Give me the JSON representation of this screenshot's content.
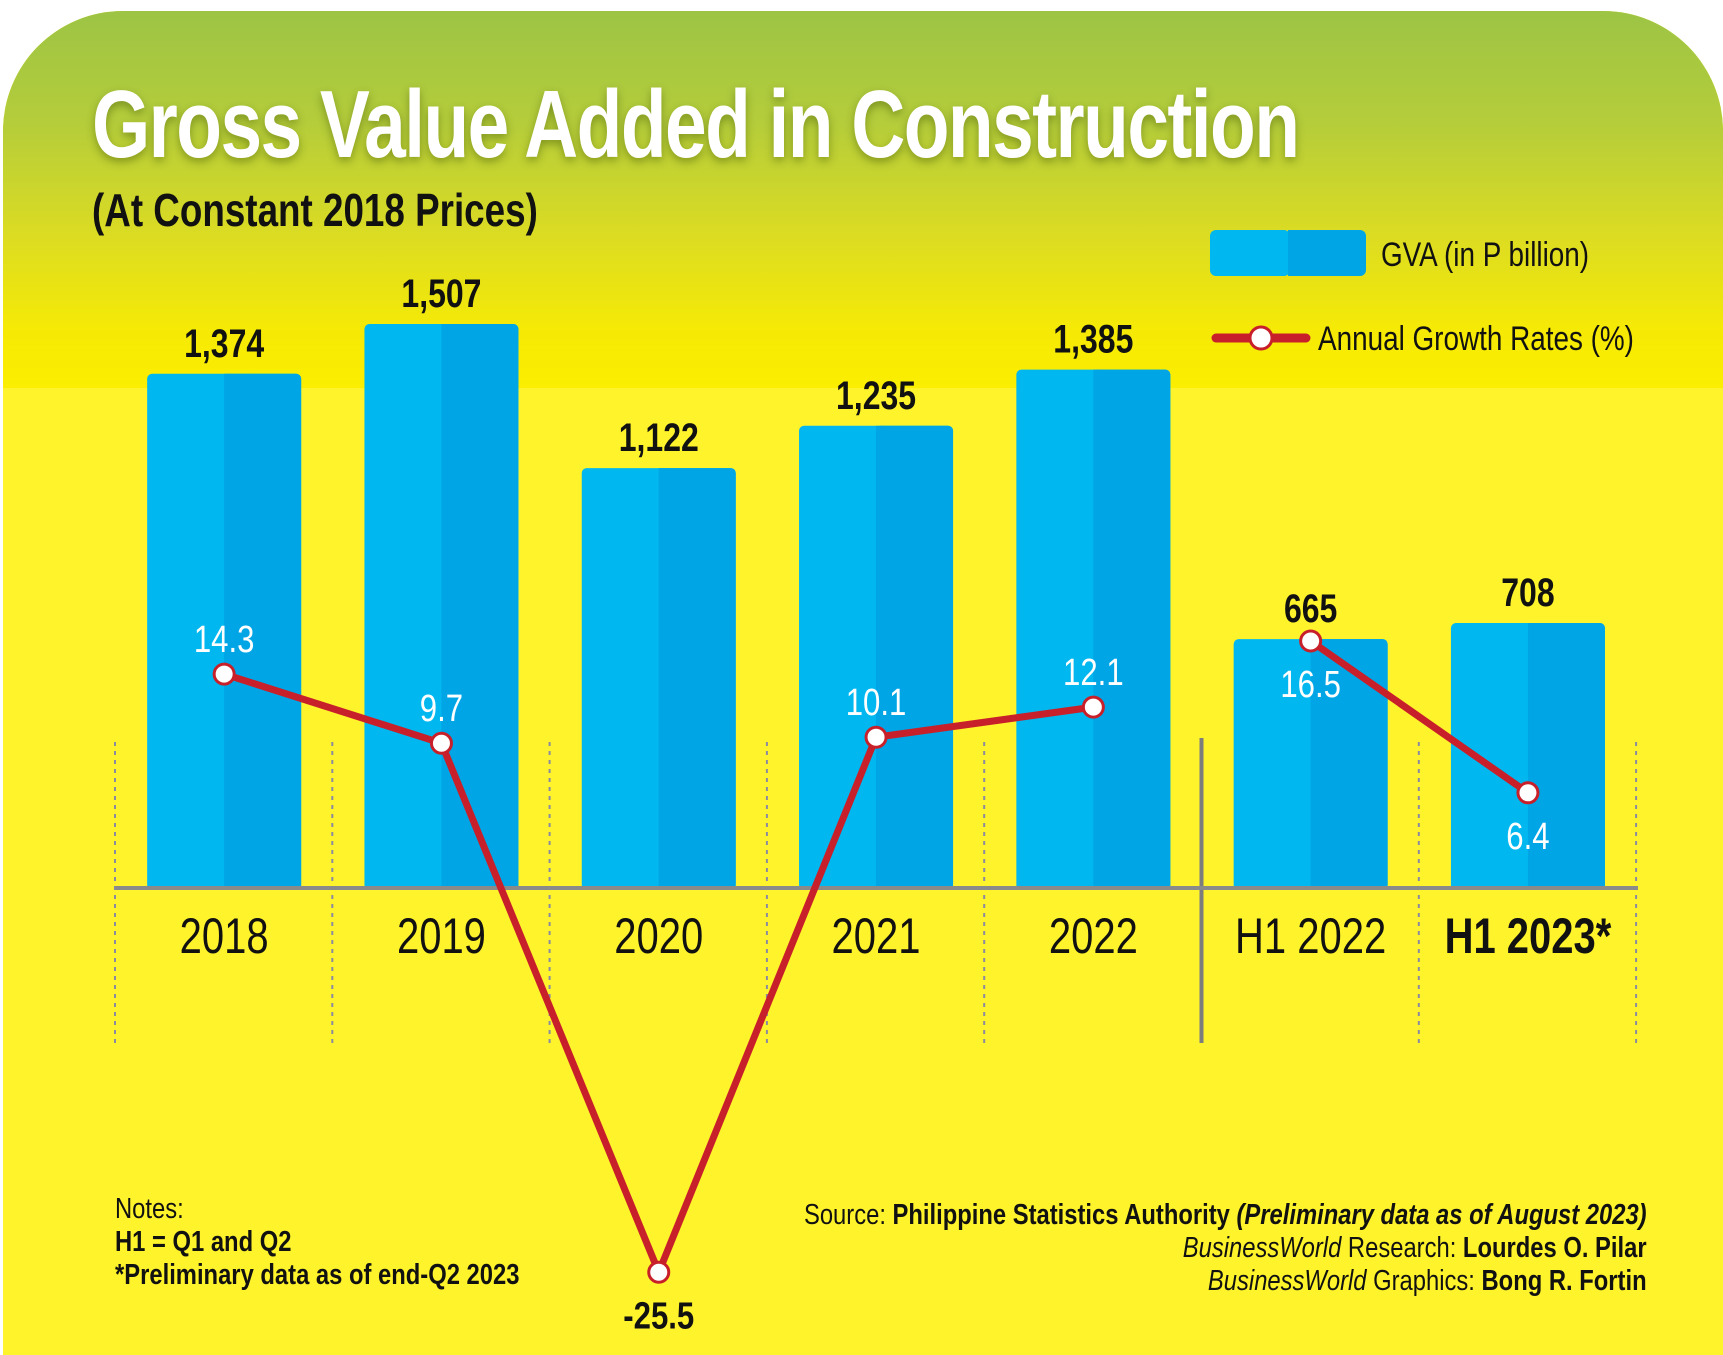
{
  "header": {
    "title": "Gross Value Added in Construction",
    "subtitle": "(At Constant 2018 Prices)"
  },
  "legend": {
    "bars_label": "GVA (in P billion)",
    "line_label": "Annual Growth Rates (%)"
  },
  "colors": {
    "bar_light": "#00b8ef",
    "bar_dark": "#00a5e6",
    "line": "#c8202a",
    "marker_fill": "#ffffff",
    "axis": "#8a8a8a",
    "background": "#fff32c"
  },
  "chart_data": {
    "type": "bar",
    "title": "Gross Value Added in Construction",
    "subtitle": "(At Constant 2018 Prices)",
    "categories": [
      "2018",
      "2019",
      "2020",
      "2021",
      "2022",
      "H1 2022",
      "H1 2023*"
    ],
    "category_emphasis": [
      false,
      false,
      false,
      false,
      false,
      false,
      true
    ],
    "series": [
      {
        "name": "GVA (in P billion)",
        "type": "bar",
        "values": [
          1374,
          1507,
          1122,
          1235,
          1385,
          665,
          708
        ],
        "labels": [
          "1,374",
          "1,507",
          "1,122",
          "1,235",
          "1,385",
          "665",
          "708"
        ]
      },
      {
        "name": "Annual Growth Rates (%)",
        "type": "line",
        "values": [
          14.3,
          9.7,
          -25.5,
          10.1,
          12.1,
          16.5,
          6.4
        ],
        "labels": [
          "14.3",
          "9.7",
          "-25.5",
          "10.1",
          "12.1",
          "16.5",
          "6.4"
        ],
        "segments": [
          [
            0,
            1,
            2,
            3,
            4
          ],
          [
            5,
            6
          ]
        ]
      }
    ],
    "xlabel": "",
    "ylabel": "",
    "bar_ylim": [
      0,
      1507
    ],
    "line_ylim": [
      -25.5,
      16.5
    ],
    "grid": false,
    "legend_position": "top-right",
    "separator_after_index": 4
  },
  "notes": {
    "heading": "Notes:",
    "line1": "H1 = Q1 and Q2",
    "line2": "*Preliminary data as of end-Q2 2023"
  },
  "credits": {
    "source_label": "Source: ",
    "source_name": "Philippine Statistics Authority ",
    "source_note": "(Preliminary data as of August 2023)",
    "research_brand": "BusinessWorld",
    "research_label": " Research: ",
    "research_name": "Lourdes O. Pilar",
    "graphics_brand": "BusinessWorld",
    "graphics_label": " Graphics: ",
    "graphics_name": "Bong R. Fortin"
  }
}
